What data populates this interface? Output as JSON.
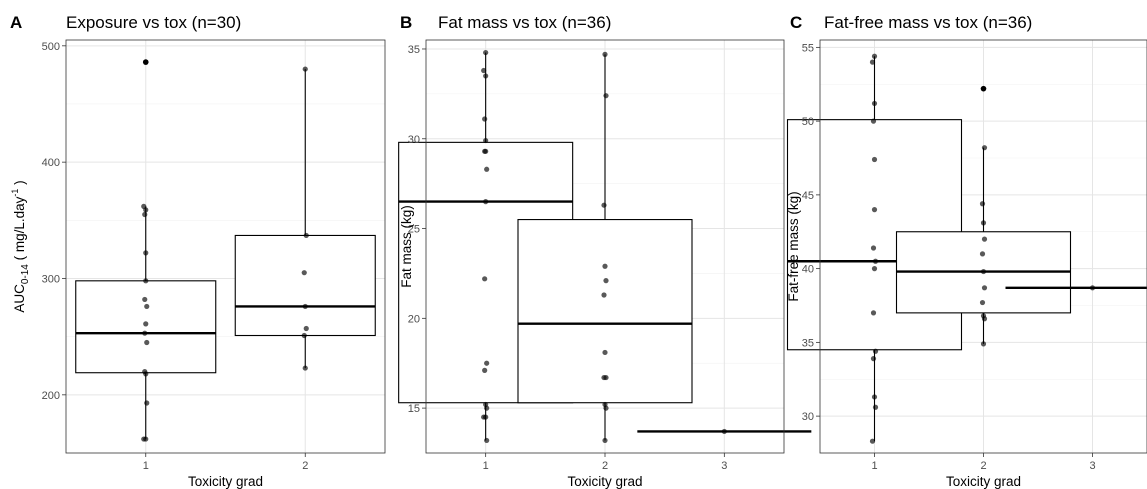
{
  "chart_data": [
    {
      "type": "boxplot",
      "panel_label": "A",
      "title": "Exposure vs tox (n=30)",
      "xlabel": "Toxicity grad",
      "ylabel_parts": {
        "base": "AUC",
        "sub": "0-14",
        "mid": " ( mg/L.day",
        "sup": "-1",
        "end": " )"
      },
      "categories": [
        "1",
        "2"
      ],
      "ylim": [
        150,
        505
      ],
      "yticks": [
        200,
        300,
        400,
        500
      ],
      "boxes": [
        {
          "category": "1",
          "q1": 219,
          "median": 253,
          "q3": 298,
          "whisker_low": 162,
          "whisker_high": 362
        },
        {
          "category": "2",
          "q1": 251,
          "median": 276,
          "q3": 337,
          "whisker_low": 223,
          "whisker_high": 480
        }
      ],
      "outliers": [
        {
          "category": "1",
          "value": 486
        }
      ],
      "points": [
        {
          "category": "1",
          "values": [
            486,
            362,
            359,
            355,
            322,
            298,
            282,
            276,
            261,
            253,
            245,
            220,
            218,
            193,
            162,
            162
          ]
        },
        {
          "category": "2",
          "values": [
            480,
            337,
            305,
            276,
            257,
            251,
            223
          ]
        }
      ]
    },
    {
      "type": "boxplot",
      "panel_label": "B",
      "title": "Fat mass vs tox (n=36)",
      "xlabel": "Toxicity grad",
      "ylabel": "Fat mass (kg)",
      "categories": [
        "1",
        "2",
        "3"
      ],
      "ylim": [
        12.5,
        35.5
      ],
      "yticks": [
        15,
        20,
        25,
        30,
        35
      ],
      "boxes": [
        {
          "category": "1",
          "q1": 15.3,
          "median": 26.5,
          "q3": 29.8,
          "whisker_low": 13.2,
          "whisker_high": 34.8
        },
        {
          "category": "2",
          "q1": 15.3,
          "median": 19.7,
          "q3": 25.5,
          "whisker_low": 13.2,
          "whisker_high": 34.7
        },
        {
          "category": "3",
          "q1": 13.7,
          "median": 13.7,
          "q3": 13.7,
          "whisker_low": 13.7,
          "whisker_high": 13.7
        }
      ],
      "outliers": [],
      "points": [
        {
          "category": "1",
          "values": [
            34.8,
            33.8,
            33.5,
            31.1,
            29.9,
            29.3,
            29.3,
            28.3,
            26.5,
            22.2,
            17.5,
            17.1,
            15.2,
            15.0,
            14.5,
            14.5,
            13.2
          ]
        },
        {
          "category": "2",
          "values": [
            34.7,
            32.4,
            26.3,
            22.9,
            22.1,
            21.3,
            18.1,
            16.7,
            16.7,
            15.2,
            15.0,
            13.2
          ]
        },
        {
          "category": "3",
          "values": [
            13.7
          ]
        }
      ]
    },
    {
      "type": "boxplot",
      "panel_label": "C",
      "title": "Fat-free mass vs tox (n=36)",
      "xlabel": "Toxicity grad",
      "ylabel": "Fat-free mass (kg)",
      "categories": [
        "1",
        "2",
        "3"
      ],
      "ylim": [
        27.5,
        55.5
      ],
      "yticks": [
        30,
        35,
        40,
        45,
        50,
        55
      ],
      "boxes": [
        {
          "category": "1",
          "q1": 34.5,
          "median": 40.5,
          "q3": 50.1,
          "whisker_low": 28.3,
          "whisker_high": 54.4
        },
        {
          "category": "2",
          "q1": 37.0,
          "median": 39.8,
          "q3": 42.5,
          "whisker_low": 34.9,
          "whisker_high": 48.2
        },
        {
          "category": "3",
          "q1": 38.7,
          "median": 38.7,
          "q3": 38.7,
          "whisker_low": 38.7,
          "whisker_high": 38.7
        }
      ],
      "outliers": [
        {
          "category": "2",
          "value": 52.2
        }
      ],
      "points": [
        {
          "category": "1",
          "values": [
            54.4,
            54.0,
            51.2,
            50.0,
            47.4,
            44.0,
            41.4,
            40.5,
            40.0,
            37.0,
            34.4,
            33.9,
            31.3,
            30.6,
            28.3
          ]
        },
        {
          "category": "2",
          "values": [
            52.2,
            48.2,
            44.4,
            43.1,
            42.0,
            41.0,
            39.8,
            38.7,
            37.7,
            36.8,
            36.6,
            34.9
          ]
        },
        {
          "category": "3",
          "values": [
            38.7
          ]
        }
      ]
    }
  ]
}
